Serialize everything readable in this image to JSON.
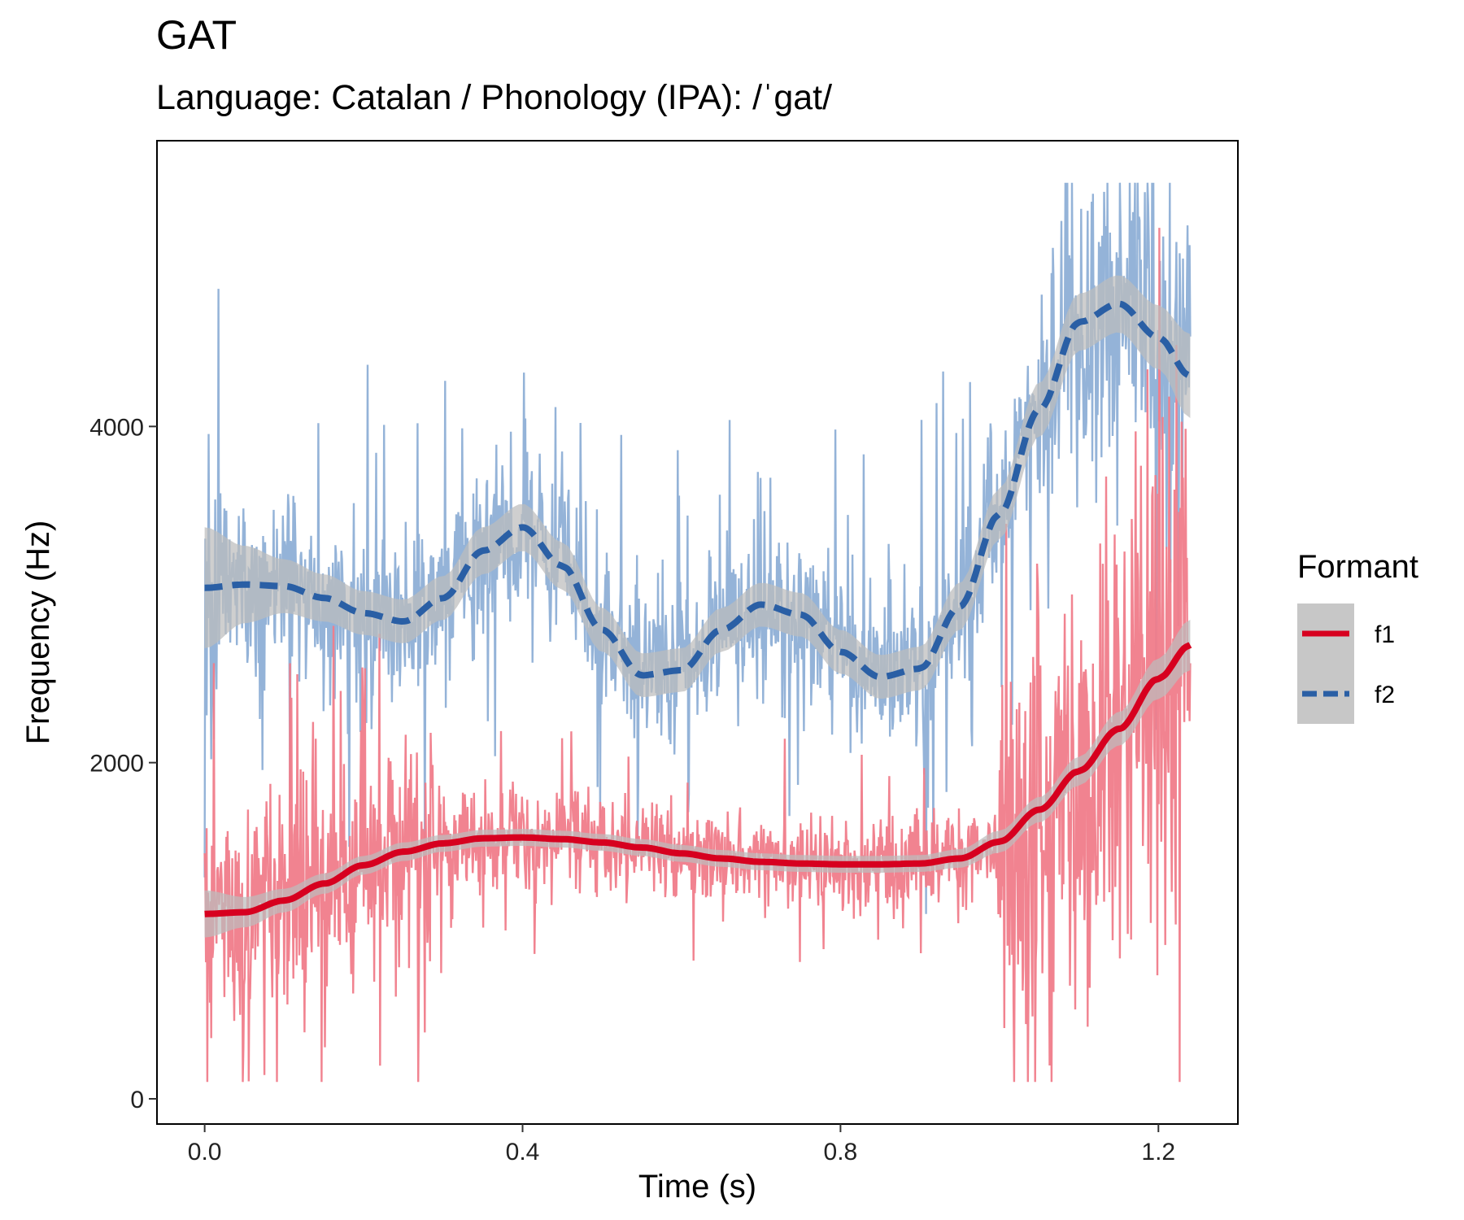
{
  "chart_data": {
    "type": "line",
    "title": "GAT",
    "subtitle": "Language: Catalan / Phonology (IPA): /ˈgat/",
    "xlabel": "Time (s)",
    "ylabel": "Frequency (Hz)",
    "xlim": [
      -0.06,
      1.3
    ],
    "ylim": [
      -150,
      5700
    ],
    "xticks": [
      0.0,
      0.4,
      0.8,
      1.2
    ],
    "xtick_labels": [
      "0.0",
      "0.4",
      "0.8",
      "1.2"
    ],
    "yticks": [
      0,
      2000,
      4000
    ],
    "ytick_labels": [
      "0",
      "2000",
      "4000"
    ],
    "grid": false,
    "legend": {
      "title": "Formant",
      "position": "right"
    },
    "colors": {
      "f1_raw": "#f07c8a",
      "f2_raw": "#8eafd6",
      "f1_smooth": "#d7001f",
      "f2_smooth": "#2a5fa5",
      "ribbon": "#bdbdbd"
    },
    "series": [
      {
        "name": "f1",
        "style": "solid",
        "smooth_x": [
          0.0,
          0.05,
          0.1,
          0.15,
          0.2,
          0.25,
          0.3,
          0.35,
          0.4,
          0.45,
          0.5,
          0.55,
          0.6,
          0.65,
          0.7,
          0.75,
          0.8,
          0.85,
          0.9,
          0.95,
          1.0,
          1.05,
          1.1,
          1.15,
          1.2,
          1.24
        ],
        "smooth_y": [
          1100,
          1110,
          1180,
          1280,
          1390,
          1470,
          1520,
          1550,
          1555,
          1545,
          1525,
          1495,
          1460,
          1430,
          1410,
          1400,
          1395,
          1395,
          1400,
          1430,
          1530,
          1720,
          1950,
          2200,
          2500,
          2700
        ],
        "band_halfwidth": [
          140,
          90,
          70,
          60,
          55,
          55,
          50,
          50,
          50,
          50,
          50,
          50,
          50,
          50,
          50,
          50,
          50,
          50,
          50,
          55,
          65,
          75,
          85,
          100,
          120,
          150
        ]
      },
      {
        "name": "f2",
        "style": "dashed",
        "smooth_x": [
          0.0,
          0.05,
          0.1,
          0.15,
          0.2,
          0.25,
          0.3,
          0.35,
          0.4,
          0.45,
          0.5,
          0.55,
          0.6,
          0.65,
          0.7,
          0.75,
          0.8,
          0.85,
          0.9,
          0.95,
          1.0,
          1.05,
          1.1,
          1.15,
          1.2,
          1.24
        ],
        "smooth_y": [
          3040,
          3060,
          3050,
          2980,
          2890,
          2840,
          2980,
          3260,
          3400,
          3170,
          2790,
          2520,
          2550,
          2790,
          2940,
          2880,
          2660,
          2510,
          2560,
          2930,
          3480,
          4100,
          4620,
          4730,
          4530,
          4300
        ],
        "band_halfwidth": [
          360,
          230,
          160,
          140,
          130,
          130,
          130,
          140,
          140,
          140,
          130,
          130,
          130,
          130,
          130,
          130,
          130,
          130,
          130,
          140,
          150,
          160,
          170,
          170,
          190,
          250
        ]
      }
    ]
  }
}
